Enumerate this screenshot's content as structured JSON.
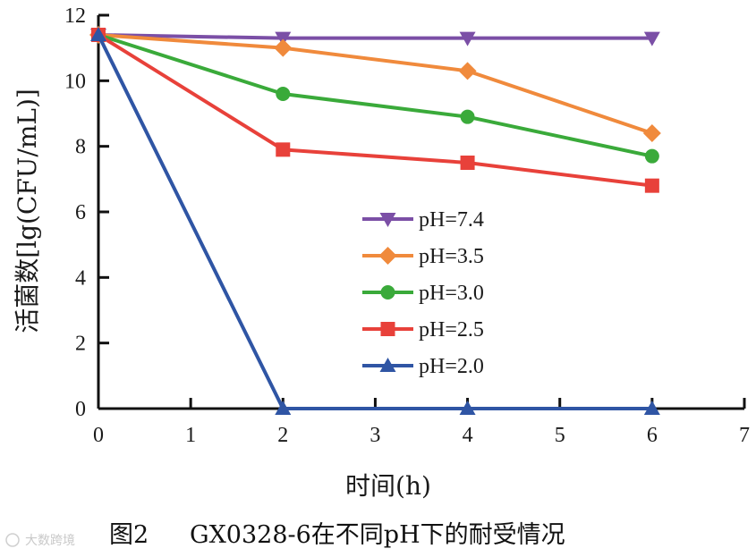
{
  "chart_data": {
    "type": "line",
    "xlabel": "时间(h)",
    "ylabel": "活菌数[lg(CFU/mL)]",
    "xlim": [
      0,
      7
    ],
    "ylim": [
      0,
      12
    ],
    "x_ticks": [
      0,
      1,
      2,
      3,
      4,
      5,
      6,
      7
    ],
    "y_ticks": [
      0,
      2,
      4,
      6,
      8,
      10,
      12
    ],
    "x": [
      0,
      2,
      4,
      6
    ],
    "grid": false,
    "legend_position": "center",
    "series": [
      {
        "name": "pH=7.4",
        "values": [
          11.4,
          11.3,
          11.3,
          11.3
        ],
        "color": "#7b4fa6",
        "marker": "triangle-down"
      },
      {
        "name": "pH=3.5",
        "values": [
          11.4,
          11.0,
          10.3,
          8.4
        ],
        "color": "#f08a3c",
        "marker": "diamond"
      },
      {
        "name": "pH=3.0",
        "values": [
          11.4,
          9.6,
          8.9,
          7.7
        ],
        "color": "#3aaa3a",
        "marker": "circle"
      },
      {
        "name": "pH=2.5",
        "values": [
          11.4,
          7.9,
          7.5,
          6.8
        ],
        "color": "#e8413a",
        "marker": "square"
      },
      {
        "name": "pH=2.0",
        "values": [
          11.4,
          0,
          0,
          0
        ],
        "color": "#2f55a4",
        "marker": "triangle-up"
      }
    ]
  },
  "caption": {
    "label": "图2",
    "text": "GX0328-6在不同pH下的耐受情况"
  },
  "watermark": {
    "text": "大数跨境"
  }
}
